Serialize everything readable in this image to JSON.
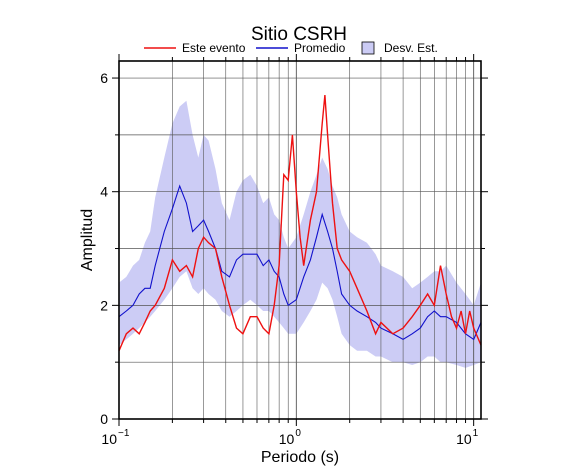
{
  "chart_data": {
    "type": "line",
    "title": "Sitio CSRH",
    "xlabel": "Periodo (s)",
    "ylabel": "Amplitud",
    "x_scale": "log",
    "xlim": [
      0.1,
      11
    ],
    "ylim": [
      0,
      6.3
    ],
    "grid": true,
    "legend_position": "top",
    "x_ticks": [
      {
        "value": 0.1,
        "base": "10",
        "exp": "−1"
      },
      {
        "value": 1,
        "base": "10",
        "exp": "0"
      },
      {
        "value": 10,
        "base": "10",
        "exp": "1"
      }
    ],
    "y_ticks": [
      0,
      2,
      4,
      6
    ],
    "series": [
      {
        "name": "Este evento",
        "color": "#ee1111",
        "x": [
          0.1,
          0.11,
          0.12,
          0.13,
          0.14,
          0.15,
          0.16,
          0.18,
          0.2,
          0.22,
          0.24,
          0.26,
          0.28,
          0.3,
          0.32,
          0.35,
          0.38,
          0.42,
          0.46,
          0.5,
          0.55,
          0.6,
          0.65,
          0.7,
          0.75,
          0.8,
          0.85,
          0.9,
          0.95,
          1.0,
          1.05,
          1.1,
          1.2,
          1.3,
          1.4,
          1.45,
          1.5,
          1.6,
          1.7,
          1.8,
          2.0,
          2.2,
          2.5,
          2.8,
          3.0,
          3.5,
          4.0,
          4.5,
          5.0,
          5.5,
          6.0,
          6.5,
          7.0,
          7.5,
          8.0,
          8.5,
          9.0,
          9.5,
          10.0,
          11.0
        ],
        "values": [
          1.2,
          1.5,
          1.6,
          1.5,
          1.7,
          1.9,
          2.0,
          2.3,
          2.8,
          2.6,
          2.7,
          2.5,
          3.0,
          3.2,
          3.1,
          3.0,
          2.5,
          2.0,
          1.6,
          1.5,
          1.8,
          1.8,
          1.6,
          1.5,
          2.0,
          2.7,
          4.3,
          4.2,
          5.0,
          4.0,
          3.2,
          2.7,
          3.5,
          4.0,
          5.2,
          5.7,
          5.0,
          3.8,
          3.0,
          2.8,
          2.6,
          2.3,
          1.9,
          1.5,
          1.7,
          1.5,
          1.6,
          1.8,
          2.0,
          2.2,
          2.0,
          2.7,
          2.2,
          1.8,
          1.6,
          1.9,
          1.5,
          1.9,
          1.6,
          1.3
        ]
      },
      {
        "name": "Promedio",
        "color": "#1111cc",
        "x": [
          0.1,
          0.11,
          0.12,
          0.13,
          0.14,
          0.15,
          0.16,
          0.18,
          0.2,
          0.22,
          0.24,
          0.26,
          0.28,
          0.3,
          0.32,
          0.35,
          0.38,
          0.42,
          0.46,
          0.5,
          0.55,
          0.6,
          0.65,
          0.7,
          0.75,
          0.8,
          0.85,
          0.9,
          1.0,
          1.1,
          1.2,
          1.3,
          1.4,
          1.5,
          1.6,
          1.7,
          1.8,
          2.0,
          2.2,
          2.5,
          2.8,
          3.0,
          3.5,
          4.0,
          4.5,
          5.0,
          5.5,
          6.0,
          6.5,
          7.0,
          8.0,
          9.0,
          10.0,
          11.0
        ],
        "values": [
          1.8,
          1.9,
          2.0,
          2.2,
          2.3,
          2.3,
          2.7,
          3.3,
          3.7,
          4.1,
          3.8,
          3.3,
          3.4,
          3.5,
          3.3,
          3.0,
          2.6,
          2.5,
          2.8,
          2.9,
          2.9,
          2.9,
          2.7,
          2.8,
          2.6,
          2.5,
          2.2,
          2.0,
          2.1,
          2.5,
          2.8,
          3.2,
          3.6,
          3.3,
          3.0,
          2.6,
          2.2,
          2.0,
          1.9,
          1.8,
          1.7,
          1.6,
          1.5,
          1.4,
          1.5,
          1.6,
          1.8,
          1.9,
          1.8,
          1.8,
          1.7,
          1.5,
          1.4,
          1.7
        ]
      }
    ],
    "band": {
      "name": "Desv. Est.",
      "color": "#ccccf5",
      "x": [
        0.1,
        0.11,
        0.12,
        0.13,
        0.14,
        0.15,
        0.16,
        0.18,
        0.2,
        0.22,
        0.24,
        0.26,
        0.28,
        0.3,
        0.32,
        0.35,
        0.38,
        0.42,
        0.46,
        0.5,
        0.55,
        0.6,
        0.65,
        0.7,
        0.75,
        0.8,
        0.85,
        0.9,
        1.0,
        1.1,
        1.2,
        1.3,
        1.4,
        1.5,
        1.6,
        1.7,
        1.8,
        2.0,
        2.2,
        2.5,
        2.8,
        3.0,
        3.5,
        4.0,
        4.5,
        5.0,
        5.5,
        6.0,
        6.5,
        7.0,
        8.0,
        9.0,
        10.0,
        11.0
      ],
      "upper": [
        2.4,
        2.5,
        2.7,
        2.8,
        3.1,
        3.3,
        3.9,
        4.6,
        5.2,
        5.5,
        5.6,
        5.0,
        4.6,
        5.0,
        4.9,
        4.4,
        3.8,
        3.5,
        4.0,
        4.2,
        4.3,
        4.1,
        3.8,
        3.9,
        3.6,
        3.5,
        3.2,
        3.0,
        3.2,
        3.6,
        4.0,
        4.3,
        4.6,
        4.4,
        4.1,
        3.9,
        3.6,
        3.3,
        3.2,
        3.1,
        2.9,
        2.7,
        2.6,
        2.5,
        2.3,
        2.4,
        2.5,
        2.6,
        2.6,
        2.7,
        2.4,
        2.2,
        2.0,
        2.4
      ],
      "lower": [
        1.3,
        1.4,
        1.5,
        1.6,
        1.7,
        1.8,
        1.9,
        2.1,
        2.3,
        2.5,
        2.6,
        2.3,
        2.2,
        2.3,
        2.2,
        2.1,
        1.9,
        1.8,
        1.9,
        2.0,
        2.1,
        2.0,
        1.9,
        1.9,
        1.8,
        1.7,
        1.6,
        1.5,
        1.5,
        1.7,
        1.9,
        2.1,
        2.4,
        2.3,
        2.1,
        1.8,
        1.5,
        1.3,
        1.2,
        1.2,
        1.1,
        1.1,
        1.0,
        1.0,
        0.95,
        1.0,
        1.1,
        1.1,
        1.0,
        1.0,
        0.95,
        0.9,
        0.95,
        1.0
      ]
    }
  }
}
